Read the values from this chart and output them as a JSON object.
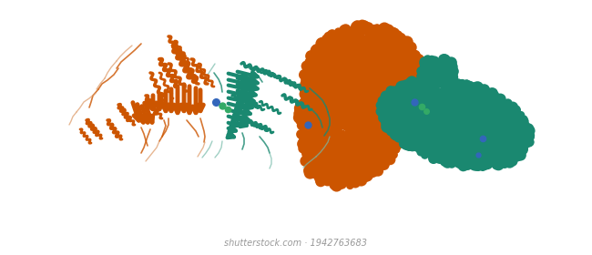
{
  "background_color": "#ffffff",
  "watermark": "shutterstock.com · 1942763683",
  "watermark_fontsize": 7,
  "watermark_color": "#999999",
  "orange": "#cc5500",
  "teal": "#1a8870",
  "light_teal": "#77bbaa",
  "blue_dark": "#3366bb",
  "green_dot": "#33aa66",
  "figsize": [
    6.5,
    2.8
  ],
  "dpi": 100
}
